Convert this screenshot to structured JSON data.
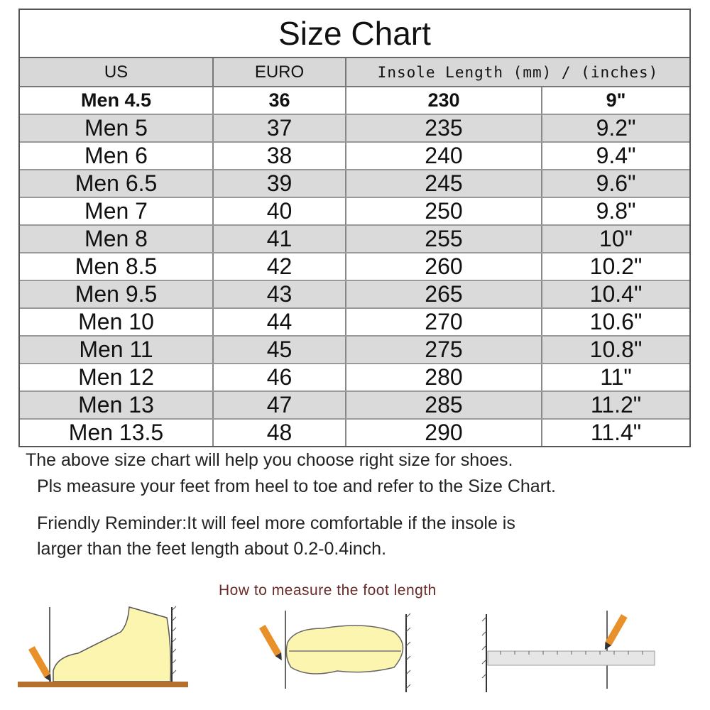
{
  "title": "Size Chart",
  "headers": {
    "us": "US",
    "euro": "EURO",
    "insole": "Insole Length (mm) / (inches)"
  },
  "rows": [
    {
      "us": "Men 4.5",
      "euro": "36",
      "mm": "230",
      "inches": "9\""
    },
    {
      "us": "Men 5",
      "euro": "37",
      "mm": "235",
      "inches": "9.2\""
    },
    {
      "us": "Men 6",
      "euro": "38",
      "mm": "240",
      "inches": "9.4\""
    },
    {
      "us": "Men 6.5",
      "euro": "39",
      "mm": "245",
      "inches": "9.6\""
    },
    {
      "us": "Men 7",
      "euro": "40",
      "mm": "250",
      "inches": "9.8\""
    },
    {
      "us": "Men 8",
      "euro": "41",
      "mm": "255",
      "inches": "10\""
    },
    {
      "us": "Men 8.5",
      "euro": "42",
      "mm": "260",
      "inches": "10.2\""
    },
    {
      "us": "Men 9.5",
      "euro": "43",
      "mm": "265",
      "inches": "10.4\""
    },
    {
      "us": "Men 10",
      "euro": "44",
      "mm": "270",
      "inches": "10.6\""
    },
    {
      "us": "Men 11",
      "euro": "45",
      "mm": "275",
      "inches": "10.8\""
    },
    {
      "us": "Men 12",
      "euro": "46",
      "mm": "280",
      "inches": "11\""
    },
    {
      "us": "Men 13",
      "euro": "47",
      "mm": "285",
      "inches": "11.2\""
    },
    {
      "us": "Men 13.5",
      "euro": "48",
      "mm": "290",
      "inches": "11.4\""
    }
  ],
  "notes": {
    "line1": "The above size chart will help you choose right size for shoes.",
    "line2": "Pls measure your feet from heel to toe and refer to the Size Chart.",
    "line3": "Friendly Reminder:It will feel more comfortable if the insole is",
    "line4": "larger than the feet length about 0.2-0.4inch."
  },
  "howto": "How to measure the foot length",
  "colors": {
    "row_alt": "#dadada",
    "foot": "#fbf5b0",
    "pencil": "#e8902a",
    "floor": "#b5702f",
    "howto_text": "#6a2a2a"
  }
}
